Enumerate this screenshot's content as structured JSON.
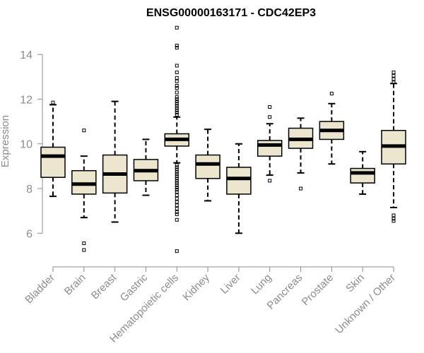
{
  "chart_data": {
    "type": "box",
    "title": "ENSG00000163171 - CDC42EP3",
    "xlabel": "",
    "ylabel": "Expression",
    "ylim": [
      5.0,
      15.3
    ],
    "yticks": [
      6,
      8,
      10,
      12,
      14
    ],
    "grid": false,
    "colors": {
      "box_fill": "#ede6cf",
      "stroke": "#000000",
      "axis": "#8c8c8c",
      "label": "#8c8c8c"
    },
    "categories": [
      "Bladder",
      "Brain",
      "Breast",
      "Gastric",
      "Hematopoietic cells",
      "Kidney",
      "Liver",
      "Lung",
      "Pancreas",
      "Prostate",
      "Skin",
      "Unknown / Other"
    ],
    "boxes": [
      {
        "name": "Bladder",
        "whisker_low": 7.65,
        "q1": 8.5,
        "median": 9.45,
        "q3": 9.85,
        "whisker_high": 11.75,
        "outliers": [
          11.85
        ]
      },
      {
        "name": "Brain",
        "whisker_low": 6.7,
        "q1": 7.75,
        "median": 8.2,
        "q3": 8.8,
        "whisker_high": 9.45,
        "outliers": [
          10.6,
          5.55,
          5.25
        ]
      },
      {
        "name": "Breast",
        "whisker_low": 6.5,
        "q1": 7.8,
        "median": 8.65,
        "q3": 9.5,
        "whisker_high": 11.9,
        "outliers": []
      },
      {
        "name": "Gastric",
        "whisker_low": 7.7,
        "q1": 8.35,
        "median": 8.8,
        "q3": 9.3,
        "whisker_high": 10.2,
        "outliers": []
      },
      {
        "name": "Hematopoietic cells",
        "whisker_low": 9.15,
        "q1": 9.9,
        "median": 10.2,
        "q3": 10.45,
        "whisker_high": 11.2,
        "outliers": [
          15.2,
          14.4,
          14.3,
          13.5,
          13.2,
          12.95,
          12.8,
          12.6,
          12.5,
          12.3,
          12.1,
          12.0,
          11.9,
          11.8,
          11.7,
          11.6,
          11.5,
          11.4,
          11.3,
          9.05,
          8.95,
          8.85,
          8.75,
          8.65,
          8.55,
          8.45,
          8.35,
          8.25,
          8.15,
          8.05,
          7.95,
          7.85,
          7.7,
          7.55,
          7.4,
          7.25,
          7.1,
          6.95,
          6.85,
          6.6,
          5.2
        ]
      },
      {
        "name": "Kidney",
        "whisker_low": 7.45,
        "q1": 8.45,
        "median": 9.1,
        "q3": 9.5,
        "whisker_high": 10.65,
        "outliers": []
      },
      {
        "name": "Liver",
        "whisker_low": 6.0,
        "q1": 7.75,
        "median": 8.45,
        "q3": 8.95,
        "whisker_high": 10.0,
        "outliers": []
      },
      {
        "name": "Lung",
        "whisker_low": 8.6,
        "q1": 9.45,
        "median": 9.95,
        "q3": 10.15,
        "whisker_high": 10.9,
        "outliers": [
          11.65,
          11.2,
          8.35
        ]
      },
      {
        "name": "Pancreas",
        "whisker_low": 8.7,
        "q1": 9.8,
        "median": 10.2,
        "q3": 10.7,
        "whisker_high": 11.15,
        "outliers": [
          8.0
        ]
      },
      {
        "name": "Prostate",
        "whisker_low": 9.1,
        "q1": 10.2,
        "median": 10.6,
        "q3": 11.0,
        "whisker_high": 11.8,
        "outliers": [
          12.25
        ]
      },
      {
        "name": "Skin",
        "whisker_low": 7.75,
        "q1": 8.25,
        "median": 8.7,
        "q3": 8.9,
        "whisker_high": 9.65,
        "outliers": []
      },
      {
        "name": "Unknown / Other",
        "whisker_low": 7.15,
        "q1": 9.1,
        "median": 9.9,
        "q3": 10.6,
        "whisker_high": 12.7,
        "outliers": [
          13.2,
          13.05,
          12.9,
          12.75,
          6.8,
          6.65,
          6.55
        ]
      }
    ]
  }
}
